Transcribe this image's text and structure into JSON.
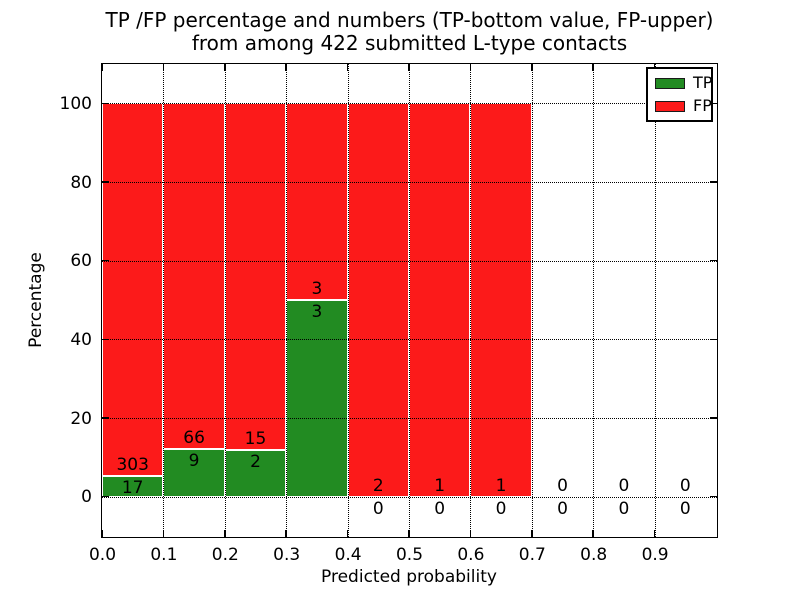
{
  "figure": {
    "title_line1": "TP /FP percentage and numbers (TP-bottom value, FP-upper)",
    "title_line2": "from among 422 submitted L-type contacts"
  },
  "chart_data": {
    "type": "bar",
    "stacked": true,
    "title": "TP /FP percentage and numbers (TP-bottom value, FP-upper) from among 422 submitted L-type contacts",
    "xlabel": "Predicted probability",
    "ylabel": "Percentage",
    "xlim": [
      0.0,
      1.0
    ],
    "ylim": [
      -10,
      110
    ],
    "grid": "dotted",
    "legend_position": "upper right",
    "bin_width": 0.1,
    "x_ticks": [
      "0.0",
      "0.1",
      "0.2",
      "0.3",
      "0.4",
      "0.5",
      "0.6",
      "0.7",
      "0.8",
      "0.9"
    ],
    "y_ticks": [
      "0",
      "20",
      "40",
      "60",
      "80",
      "100"
    ],
    "series": [
      {
        "name": "TP",
        "color": "#228b22",
        "counts": [
          17,
          9,
          2,
          3,
          0,
          0,
          0,
          0,
          0,
          0
        ]
      },
      {
        "name": "FP",
        "color": "#fc1a1a",
        "counts": [
          303,
          66,
          15,
          3,
          2,
          1,
          1,
          0,
          0,
          0
        ]
      }
    ],
    "bins": [
      {
        "range": "0.0-0.1",
        "tp": 17,
        "fp": 303,
        "tp_pct": 5.31
      },
      {
        "range": "0.1-0.2",
        "tp": 9,
        "fp": 66,
        "tp_pct": 12.0
      },
      {
        "range": "0.2-0.3",
        "tp": 2,
        "fp": 15,
        "tp_pct": 11.76
      },
      {
        "range": "0.3-0.4",
        "tp": 3,
        "fp": 3,
        "tp_pct": 50.0
      },
      {
        "range": "0.4-0.5",
        "tp": 0,
        "fp": 2,
        "tp_pct": 0.0
      },
      {
        "range": "0.5-0.6",
        "tp": 0,
        "fp": 1,
        "tp_pct": 0.0
      },
      {
        "range": "0.6-0.7",
        "tp": 0,
        "fp": 1,
        "tp_pct": 0.0
      },
      {
        "range": "0.7-0.8",
        "tp": 0,
        "fp": 0,
        "tp_pct": null
      },
      {
        "range": "0.8-0.9",
        "tp": 0,
        "fp": 0,
        "tp_pct": null
      },
      {
        "range": "0.9-1.0",
        "tp": 0,
        "fp": 0,
        "tp_pct": null
      }
    ],
    "total_contacts": 422
  }
}
